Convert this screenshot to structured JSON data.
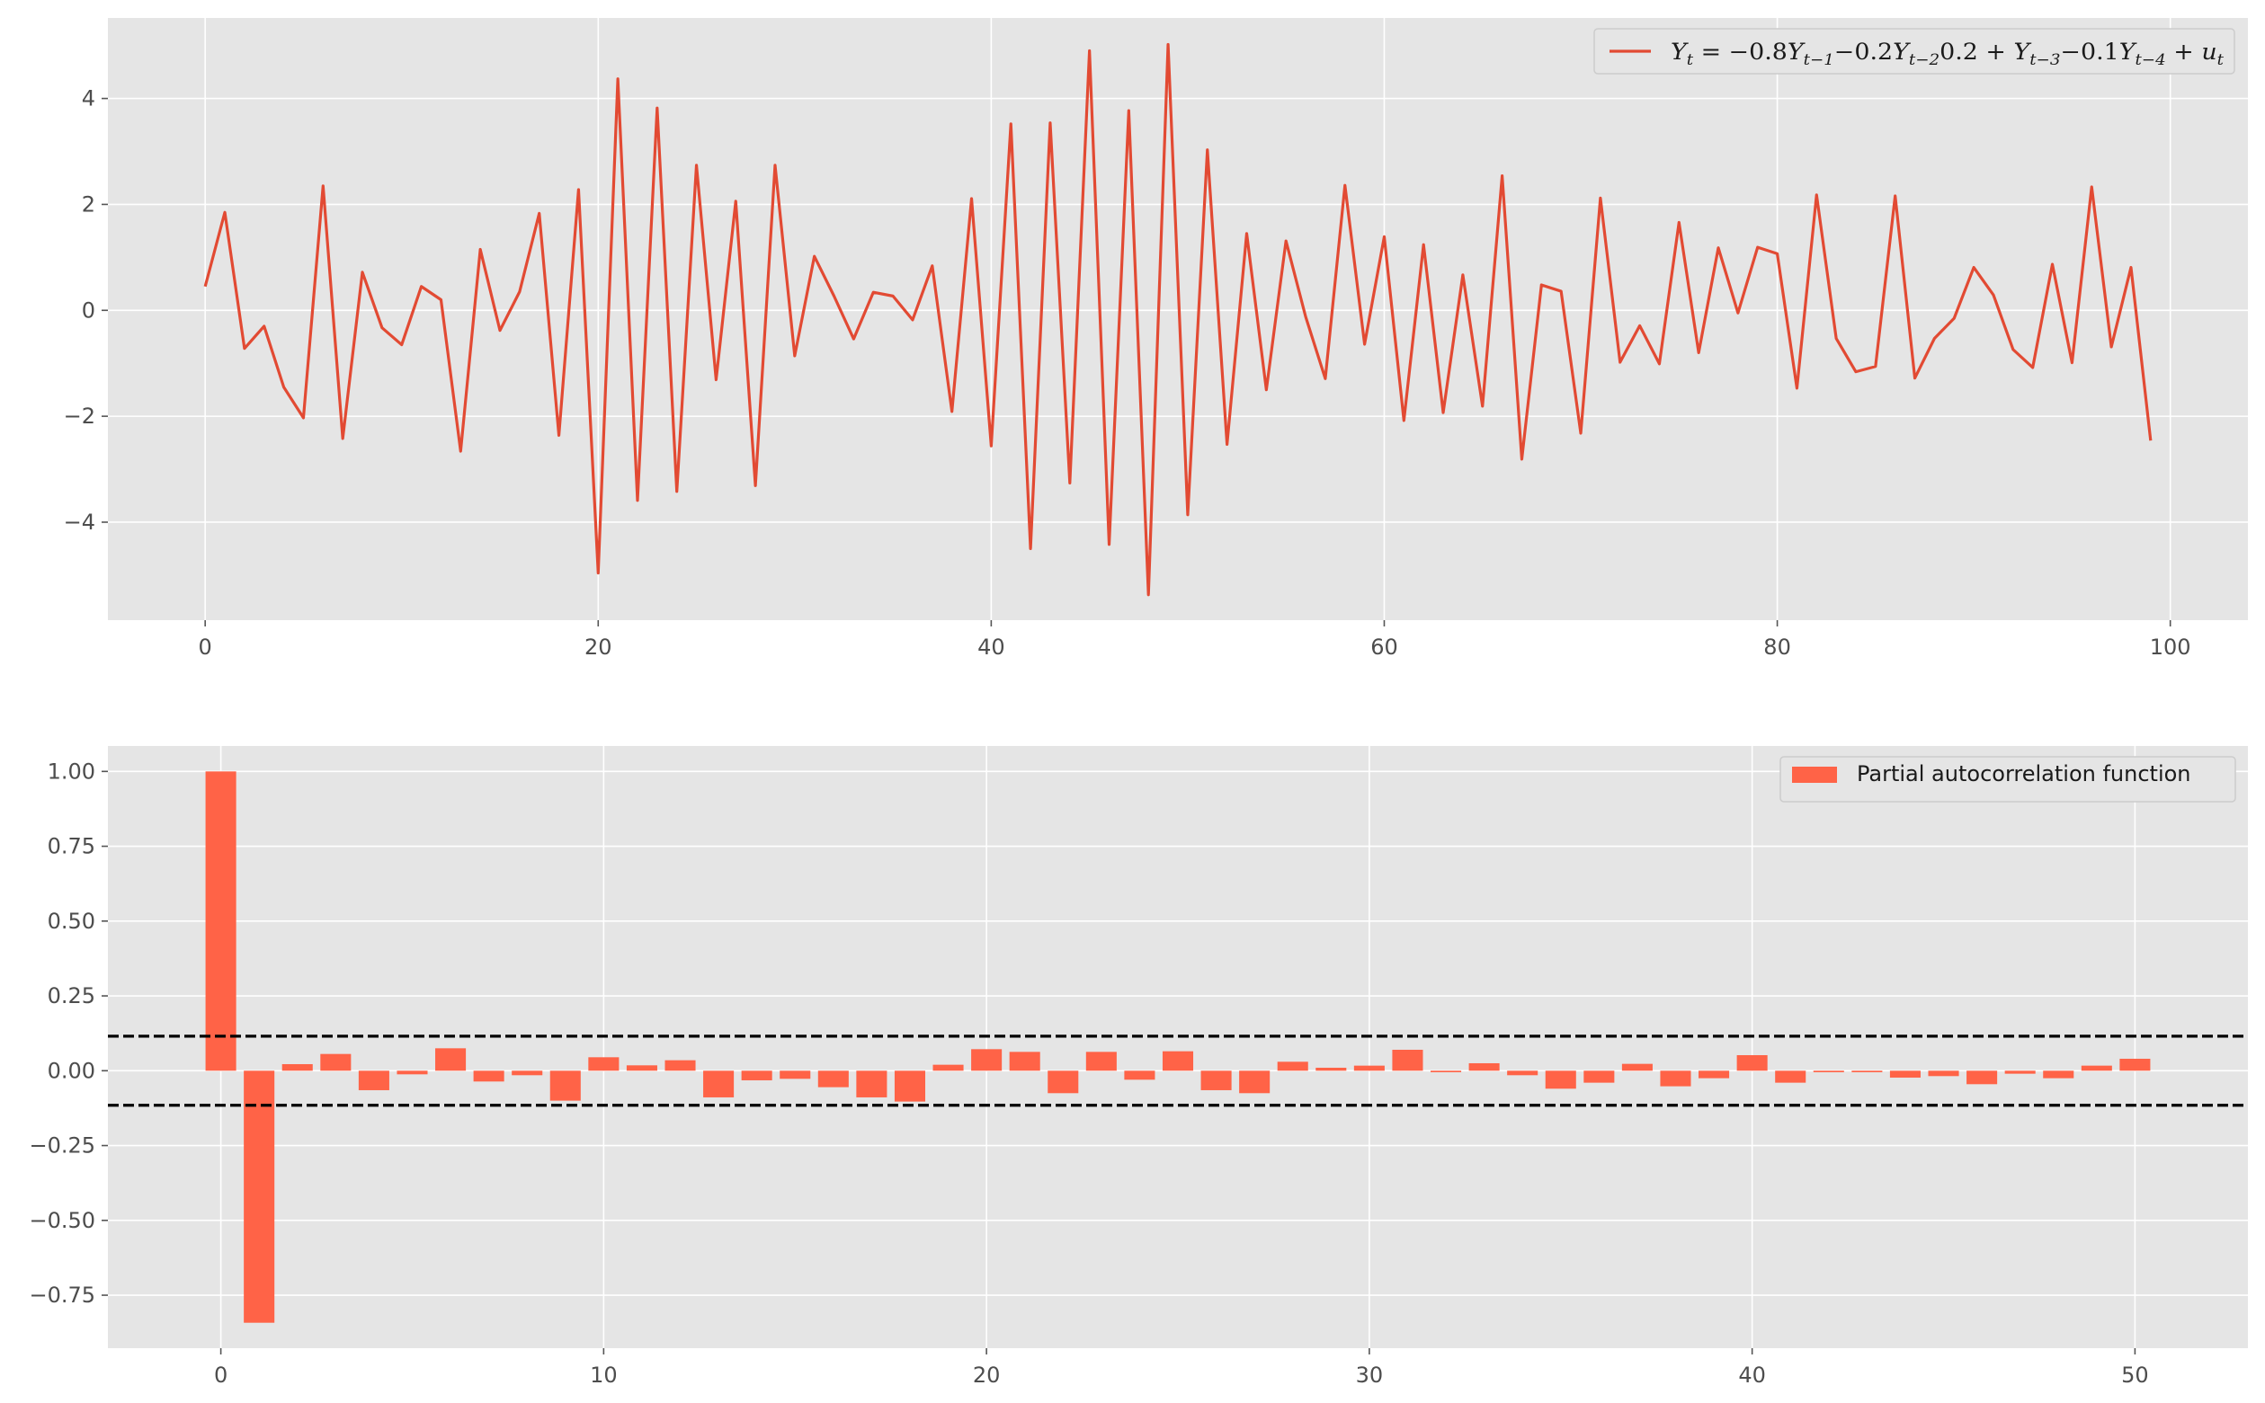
{
  "chart_data": [
    {
      "type": "line",
      "legend_label": "Y_t = −0.8Y_{t−1} −0.2Y_{t−2}0.2 + Y_{t−3} −0.1Y_{t−4} + u_t",
      "legend_position": "top-right",
      "color": "#e24a33",
      "x": [
        0,
        1,
        2,
        3,
        4,
        5,
        6,
        7,
        8,
        9,
        10,
        11,
        12,
        13,
        14,
        15,
        16,
        17,
        18,
        19,
        20,
        21,
        22,
        23,
        24,
        25,
        26,
        27,
        28,
        29,
        30,
        31,
        32,
        33,
        34,
        35,
        36,
        37,
        38,
        39,
        40,
        41,
        42,
        43,
        44,
        45,
        46,
        47,
        48,
        49,
        50,
        51,
        52,
        53,
        54,
        55,
        56,
        57,
        58,
        59,
        60,
        61,
        62,
        63,
        64,
        65,
        66,
        67,
        68,
        69,
        70,
        71,
        72,
        73,
        74,
        75,
        76,
        77,
        78,
        79,
        80,
        81,
        82,
        83,
        84,
        85,
        86,
        87,
        88,
        89,
        90,
        91,
        92,
        93,
        94,
        95,
        96,
        97,
        98,
        99
      ],
      "y": [
        0.45,
        1.85,
        -0.72,
        -0.3,
        -1.45,
        -2.03,
        2.35,
        -2.42,
        0.72,
        -0.33,
        -0.65,
        0.45,
        0.2,
        -2.66,
        1.15,
        -0.38,
        0.35,
        1.83,
        -2.36,
        2.28,
        -4.96,
        4.37,
        -3.59,
        3.82,
        -3.42,
        2.74,
        -1.31,
        2.06,
        -3.31,
        2.74,
        -0.86,
        1.02,
        0.27,
        -0.54,
        0.34,
        0.27,
        -0.18,
        0.84,
        -1.91,
        2.11,
        -2.56,
        3.52,
        -4.5,
        3.54,
        -3.26,
        4.9,
        -4.42,
        3.77,
        -5.37,
        5.02,
        -3.86,
        3.03,
        -2.53,
        1.45,
        -1.5,
        1.31,
        -0.12,
        -1.29,
        2.36,
        -0.64,
        1.39,
        -2.08,
        1.24,
        -1.93,
        0.67,
        -1.81,
        2.54,
        -2.81,
        0.48,
        0.36,
        -2.32,
        2.12,
        -0.98,
        -0.29,
        -1.01,
        1.66,
        -0.8,
        1.18,
        -0.05,
        1.19,
        1.07,
        -1.47,
        2.18,
        -0.53,
        -1.16,
        -1.06,
        2.16,
        -1.28,
        -0.53,
        -0.15,
        0.81,
        0.29,
        -0.74,
        -1.08,
        0.87,
        -0.99,
        2.33,
        -0.69,
        0.81,
        -2.46
      ],
      "xlim": [
        -4.95,
        103.95
      ],
      "ylim": [
        -5.85,
        5.52
      ],
      "xticks": [
        0,
        20,
        40,
        60,
        80,
        100
      ],
      "yticks": [
        -4,
        -2,
        0,
        2,
        4
      ],
      "xtick_labels": [
        "0",
        "20",
        "40",
        "60",
        "80",
        "100"
      ],
      "ytick_labels": [
        "−4",
        "−2",
        "0",
        "2",
        "4"
      ],
      "grid": true
    },
    {
      "type": "bar",
      "legend_label": "Partial autocorrelation function",
      "legend_position": "top-right",
      "color": "#ff6347",
      "x": [
        0,
        1,
        2,
        3,
        4,
        5,
        6,
        7,
        8,
        9,
        10,
        11,
        12,
        13,
        14,
        15,
        16,
        17,
        18,
        19,
        20,
        21,
        22,
        23,
        24,
        25,
        26,
        27,
        28,
        29,
        30,
        31,
        32,
        33,
        34,
        35,
        36,
        37,
        38,
        39,
        40,
        41,
        42,
        43,
        44,
        45,
        46,
        47,
        48,
        49,
        50
      ],
      "values": [
        1.0,
        -0.842,
        0.022,
        0.056,
        -0.065,
        -0.012,
        0.075,
        -0.036,
        -0.015,
        -0.1,
        0.045,
        0.018,
        0.035,
        -0.089,
        -0.032,
        -0.027,
        -0.055,
        -0.089,
        -0.103,
        0.02,
        0.072,
        0.063,
        -0.075,
        0.063,
        -0.03,
        0.065,
        -0.065,
        -0.075,
        0.03,
        0.01,
        0.017,
        0.07,
        -0.005,
        0.025,
        -0.015,
        -0.06,
        -0.04,
        0.023,
        -0.052,
        -0.025,
        0.052,
        -0.04,
        -0.005,
        -0.005,
        -0.023,
        -0.018,
        -0.045,
        -0.01,
        -0.025,
        0.017,
        0.04
      ],
      "confidence_bound": 0.1155,
      "xlim": [
        -2.95,
        52.95
      ],
      "ylim": [
        -0.927,
        1.085
      ],
      "xticks": [
        0,
        10,
        20,
        30,
        40,
        50
      ],
      "yticks": [
        -0.75,
        -0.5,
        -0.25,
        0.0,
        0.25,
        0.5,
        0.75,
        1.0
      ],
      "xtick_labels": [
        "0",
        "10",
        "20",
        "30",
        "40",
        "50"
      ],
      "ytick_labels": [
        "−0.75",
        "−0.50",
        "−0.25",
        "0.00",
        "0.25",
        "0.50",
        "0.75",
        "1.00"
      ],
      "grid": true
    }
  ]
}
